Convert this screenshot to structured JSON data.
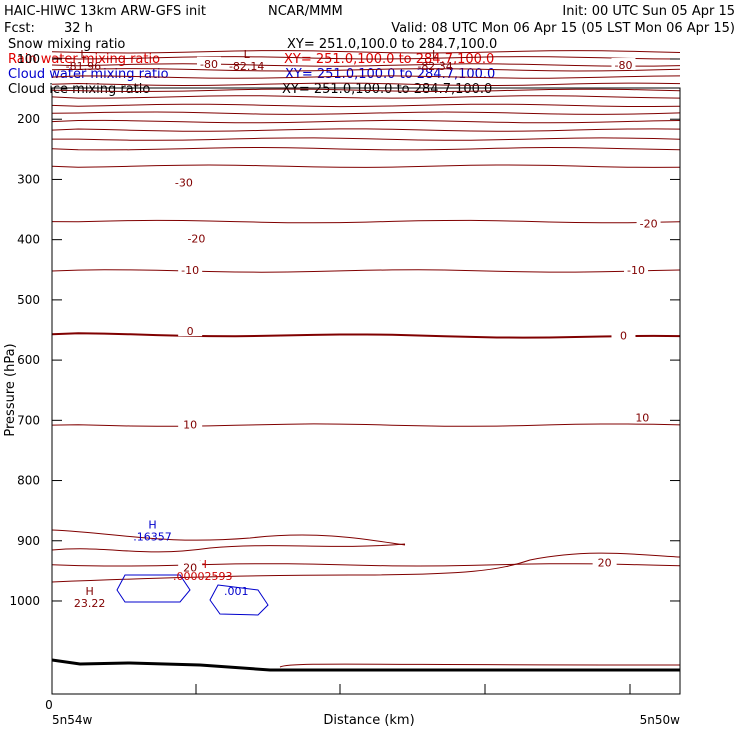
{
  "header": {
    "title": "HAIC-HIWC 13km ARW-GFS init",
    "org": "NCAR/MMM",
    "init": "Init: 00 UTC Sun 05 Apr 15",
    "fcst_label": "Fcst:",
    "fcst_value": "32 h",
    "valid": "Valid: 08 UTC Mon 06 Apr 15 (05 LST Mon 06 Apr 15)"
  },
  "legend": [
    {
      "label": "Snow mixing ratio",
      "xy": "XY= 251.0,100.0 to 284.7,100.0",
      "color": "#000000"
    },
    {
      "label": "Rain water mixing ratio",
      "xy": "XY= 251.0,100.0 to 284.7,100.0",
      "color": "#e00000"
    },
    {
      "label": "Cloud water mixing ratio",
      "xy": "XY= 251.0,100.0 to 284.7,100.0",
      "color": "#0000cc"
    },
    {
      "label": "Cloud ice mixing ratio",
      "xy": "XY= 251.0,100.0 to 284.7,100.0",
      "color": "#000000"
    }
  ],
  "chart_data": {
    "type": "contour cross-section",
    "xlabel": "Distance (km)",
    "ylabel": "Pressure (hPa)",
    "x_start_label": "5n54w",
    "x_end_label": "5n50w",
    "x_origin_label": "0",
    "ylim": [
      1050,
      70
    ],
    "yticks": [
      "100",
      "200",
      "300",
      "400",
      "500",
      "600",
      "700",
      "800",
      "900",
      "1000"
    ],
    "colors": {
      "temperature": "#800000",
      "cloud_water": "#0000cc",
      "rain_water": "#cc0000",
      "terrain": "#000000"
    },
    "temperature_isotherms": [
      {
        "label": "-80",
        "p": 88
      },
      {
        "label": "",
        "p": 98
      },
      {
        "label": "",
        "p": 110
      },
      {
        "label": "-80",
        "p": 118
      },
      {
        "label": "",
        "p": 130
      },
      {
        "label": "",
        "p": 142
      },
      {
        "label": "",
        "p": 152
      },
      {
        "label": "",
        "p": 163
      },
      {
        "label": "",
        "p": 177
      },
      {
        "label": "",
        "p": 190
      },
      {
        "label": "",
        "p": 204
      },
      {
        "label": "",
        "p": 218
      },
      {
        "label": "",
        "p": 233
      },
      {
        "label": "",
        "p": 249
      },
      {
        "label": "-30",
        "p": 278
      },
      {
        "label": "-20",
        "p": 370
      },
      {
        "label": "-10",
        "p": 452
      },
      {
        "label": "0",
        "p": 557
      },
      {
        "label": "10",
        "p": 708
      },
      {
        "label": "20",
        "p": 940
      }
    ],
    "temperature_labels": [
      {
        "text": "-80",
        "x_frac": 0.25,
        "p": 108
      },
      {
        "text": "-80",
        "x_frac": 0.91,
        "p": 110
      },
      {
        "text": "-30",
        "x_frac": 0.21,
        "p": 305
      },
      {
        "text": "-20",
        "x_frac": 0.23,
        "p": 398
      },
      {
        "text": "-20",
        "x_frac": 0.95,
        "p": 373
      },
      {
        "text": "-10",
        "x_frac": 0.22,
        "p": 450
      },
      {
        "text": "-10",
        "x_frac": 0.93,
        "p": 450
      },
      {
        "text": "0",
        "x_frac": 0.22,
        "p": 552
      },
      {
        "text": "0",
        "x_frac": 0.91,
        "p": 559
      },
      {
        "text": "10",
        "x_frac": 0.22,
        "p": 707
      },
      {
        "text": "10",
        "x_frac": 0.94,
        "p": 695
      },
      {
        "text": "20",
        "x_frac": 0.22,
        "p": 944
      },
      {
        "text": "20",
        "x_frac": 0.88,
        "p": 936
      }
    ],
    "extrema": [
      {
        "type": "L",
        "value": "-81.96",
        "x_frac": 0.05,
        "p": 98,
        "color": "#800000"
      },
      {
        "type": "L",
        "value": "-82.14",
        "x_frac": 0.31,
        "p": 98,
        "color": "#800000"
      },
      {
        "type": "L",
        "value": "-82.34",
        "x_frac": 0.61,
        "p": 98,
        "color": "#800000"
      },
      {
        "type": "H",
        "value": "23.22",
        "x_frac": 0.06,
        "p": 990,
        "color": "#800000"
      },
      {
        "type": "H",
        "value": ".16357",
        "x_frac": 0.16,
        "p": 880,
        "color": "#0000cc"
      },
      {
        "type": "H",
        "value": ".00002593",
        "x_frac": 0.24,
        "p": 945,
        "color": "#cc0000"
      }
    ],
    "cloud_water_contour_labels": [
      ".001"
    ]
  }
}
